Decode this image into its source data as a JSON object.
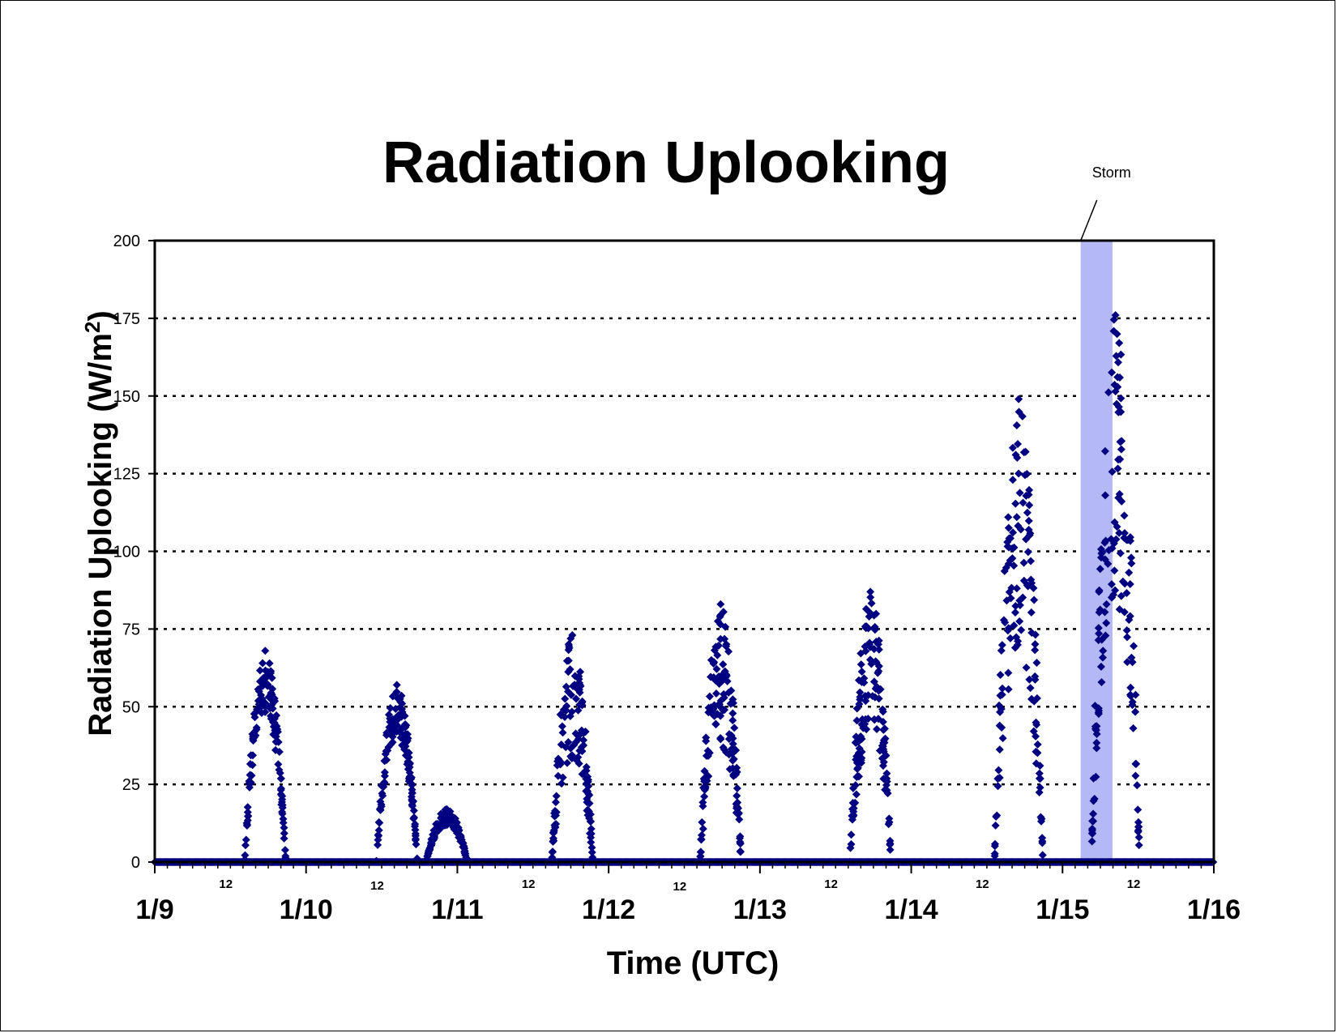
{
  "chart_data": {
    "type": "scatter",
    "title": "Radiation Uplooking",
    "xlabel": "Time (UTC)",
    "ylabel": "Radiation Uplooking (W/m",
    "ylabel_superscript": "2",
    "ylabel_close": ")",
    "ylim": [
      0,
      200
    ],
    "yticks": [
      0,
      25,
      50,
      75,
      100,
      125,
      150,
      175,
      200
    ],
    "xlim_days": [
      0,
      7
    ],
    "date_labels": [
      "1/9",
      "1/10",
      "1/11",
      "1/12",
      "1/13",
      "1/14",
      "1/15",
      "1/16"
    ],
    "hour_label": "12",
    "grid": "horizontal dotted",
    "marker_color": "#000080",
    "shade_color": "#b4b8f5",
    "storm": {
      "label": "Storm",
      "start_day": 6.12,
      "end_day": 6.33
    },
    "daily_peaks": [
      {
        "date": "1/9",
        "peak_day": 0.73,
        "peak": 68
      },
      {
        "date": "1/10",
        "peak_day": 1.6,
        "peak": 57
      },
      {
        "date": "1/11",
        "peak_day": 1.93,
        "peak": 17
      },
      {
        "date": "1/11",
        "peak_day": 2.76,
        "peak": 73
      },
      {
        "date": "1/12",
        "peak_day": 3.74,
        "peak": 83
      },
      {
        "date": "1/13",
        "peak_day": 4.73,
        "peak": 87
      },
      {
        "date": "1/14",
        "peak_day": 5.71,
        "peak": 149
      },
      {
        "date": "1/15",
        "peak_day": 6.35,
        "peak": 176
      }
    ]
  }
}
